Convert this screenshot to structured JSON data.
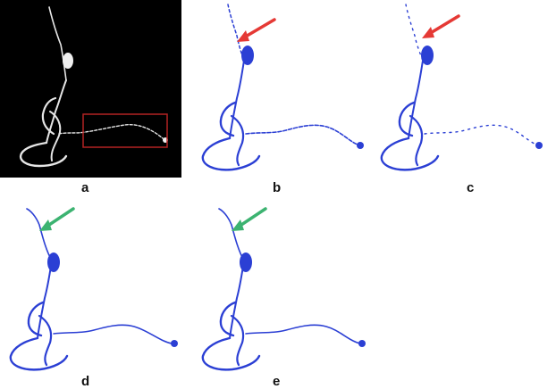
{
  "figure": {
    "panels": [
      {
        "label": "a",
        "style": "grayscale microscopy on black",
        "highlight_box_color": "#b22222"
      },
      {
        "label": "b",
        "style": "blue reconstruction",
        "arrow_color": "#e53935"
      },
      {
        "label": "c",
        "style": "blue reconstruction",
        "arrow_color": "#e53935"
      },
      {
        "label": "d",
        "style": "blue reconstruction",
        "arrow_color": "#3cb371"
      },
      {
        "label": "e",
        "style": "blue reconstruction",
        "arrow_color": "#3cb371"
      }
    ],
    "colors": {
      "trace_blue": "#2b3fd4",
      "fluorescent_white": "#e6e6e6",
      "background_black": "#000000"
    }
  }
}
